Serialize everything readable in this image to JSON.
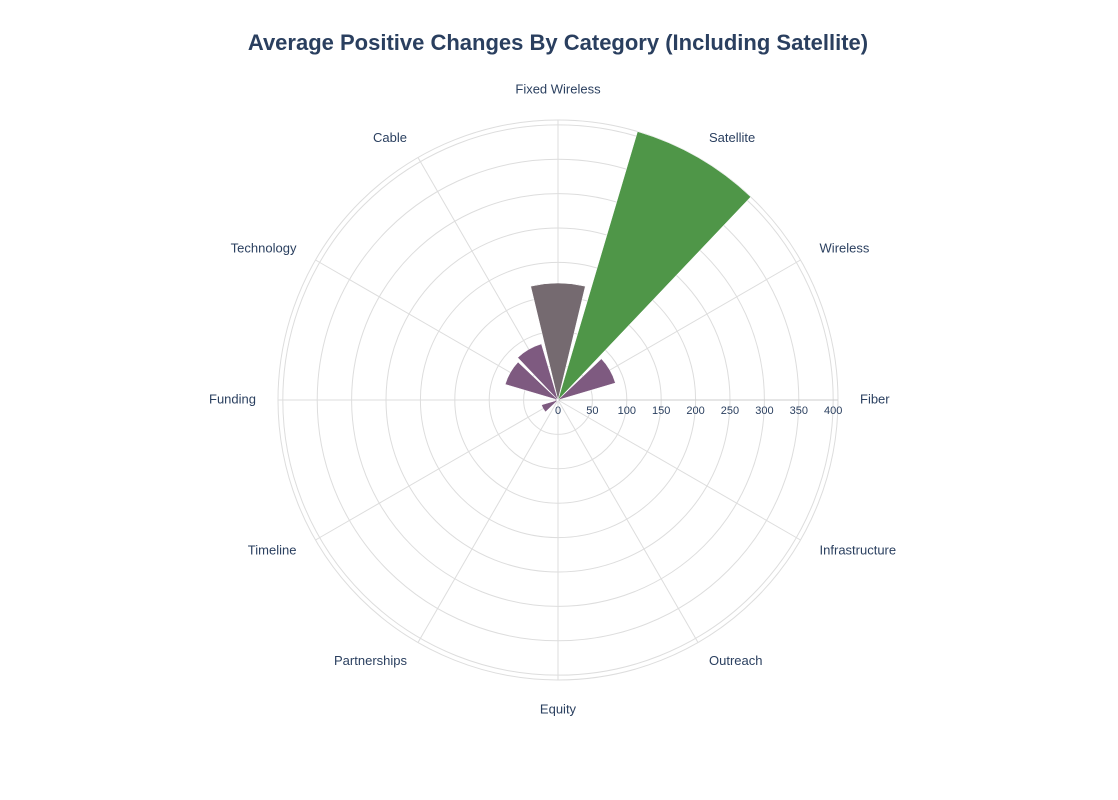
{
  "chart_data": {
    "type": "barpolar",
    "title": "Average Positive Changes By Category (Including Satellite)",
    "categories": [
      "Fiber",
      "Wireless",
      "Satellite",
      "Fixed Wireless",
      "Cable",
      "Technology",
      "Funding",
      "Timeline",
      "Partnerships",
      "Equity",
      "Outreach",
      "Infrastructure"
    ],
    "values": [
      3,
      87,
      407,
      170,
      85,
      80,
      5,
      25,
      2,
      2,
      2,
      3
    ],
    "colors": [
      "#7e5a80",
      "#7e5a80",
      "#4f9648",
      "#756a70",
      "#7e5a80",
      "#7e5a80",
      "#7e5a80",
      "#7e5a80",
      "#7e5a80",
      "#7e5a80",
      "#7e5a80",
      "#7e5a80"
    ],
    "rlim": [
      0,
      407
    ],
    "rticks": [
      0,
      50,
      100,
      150,
      200,
      250,
      300,
      350,
      400
    ],
    "grid": true
  }
}
